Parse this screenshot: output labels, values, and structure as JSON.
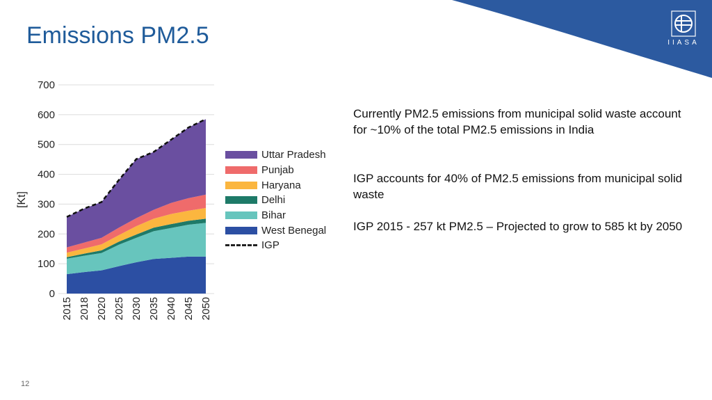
{
  "slide": {
    "title": "Emissions PM2.5",
    "page_number": "12",
    "logo_text": "IIASA",
    "bullets": [
      "Currently PM2.5 emissions from municipal solid waste account for ~10% of  the total PM2.5 emissions in India",
      "IGP accounts for 40% of PM2.5 emissions from municipal solid waste",
      "IGP 2015 - 257 kt PM2.5 – Projected to grow to 585 kt by 2050"
    ],
    "colors": {
      "title": "#1f5b9a",
      "corner": "#2c5aa0"
    }
  },
  "chart_data": {
    "type": "area",
    "stacked": true,
    "ylabel": "[Kt]",
    "xlabel": "",
    "ylim": [
      0,
      700
    ],
    "yticks": [
      0,
      100,
      200,
      300,
      400,
      500,
      600,
      700
    ],
    "grid": true,
    "legend_position": "right",
    "categories": [
      "2015",
      "2018",
      "2020",
      "2025",
      "2030",
      "2035",
      "2040",
      "2045",
      "2050"
    ],
    "series": [
      {
        "name": "West Benegal",
        "color": "#2c4fa3",
        "values": [
          65,
          72,
          78,
          92,
          105,
          116,
          120,
          124,
          124
        ]
      },
      {
        "name": "Bihar",
        "color": "#67c5bd",
        "values": [
          52,
          55,
          58,
          72,
          82,
          93,
          100,
          107,
          113
        ]
      },
      {
        "name": "Delhi",
        "color": "#1e7a68",
        "values": [
          5,
          7,
          9,
          10,
          11,
          12,
          13,
          13,
          14
        ]
      },
      {
        "name": "Haryana",
        "color": "#fbb63f",
        "values": [
          15,
          17,
          20,
          22,
          28,
          30,
          34,
          34,
          36
        ]
      },
      {
        "name": "Punjab",
        "color": "#ef6b6b",
        "values": [
          18,
          20,
          22,
          25,
          27,
          30,
          37,
          42,
          45
        ]
      },
      {
        "name": "Uttar Pradesh",
        "color": "#6a4fa0",
        "values": [
          102,
          114,
          120,
          160,
          198,
          194,
          212,
          237,
          253
        ]
      }
    ],
    "line_series": {
      "name": "IGP",
      "color": "#111111",
      "values": [
        257,
        285,
        307,
        381,
        451,
        475,
        516,
        557,
        585
      ]
    }
  }
}
